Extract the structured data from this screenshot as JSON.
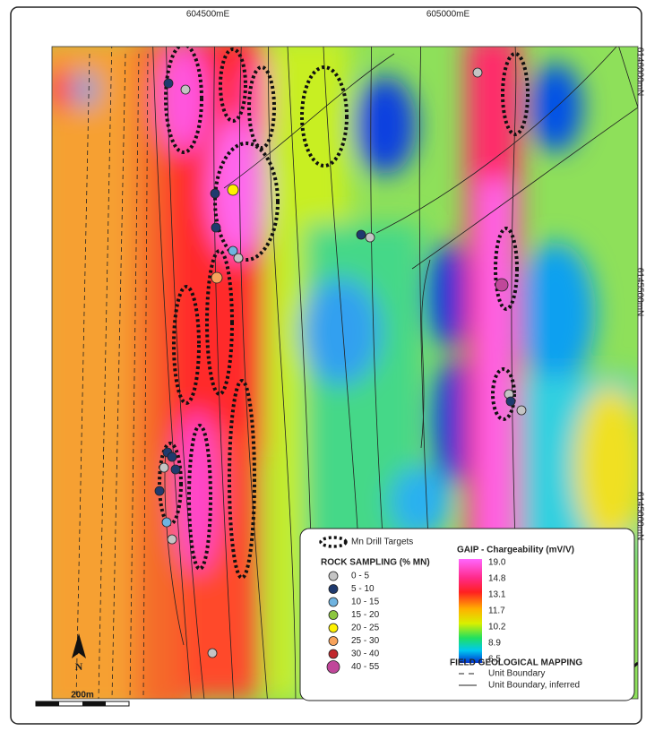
{
  "map": {
    "easting_labels": [
      "604500mE",
      "605000mE"
    ],
    "northing_labels": [
      "6146000mN",
      "6145500mN",
      "6145000mN"
    ],
    "north": "N",
    "scale": "200m",
    "legend": {
      "drill_targets": "Mn Drill Targets",
      "rock_sampling": {
        "title": "ROCK SAMPLING (% MN)",
        "classes": [
          {
            "label": "0 - 5",
            "color": "#c4c4c4"
          },
          {
            "label": "5 - 10",
            "color": "#1f3a6e"
          },
          {
            "label": "10 - 15",
            "color": "#6fb3e0"
          },
          {
            "label": "15 - 20",
            "color": "#8cc63f"
          },
          {
            "label": "20 - 25",
            "color": "#fff200"
          },
          {
            "label": "25 - 30",
            "color": "#f7a35c"
          },
          {
            "label": "30 - 40",
            "color": "#c1272d"
          },
          {
            "label": "40 - 55",
            "color": "#c0479a"
          }
        ]
      },
      "chargeability": {
        "title": "GAIP - Chargeability (mV/V)",
        "labels": [
          "19.0",
          "14.8",
          "13.1",
          "11.7",
          "10.2",
          "8.9",
          "6.5"
        ]
      },
      "mapping": {
        "title": "FIELD GEOLOGICAL MAPPING",
        "items": [
          "Unit Boundary",
          "Unit Boundary, inferred"
        ]
      }
    }
  }
}
